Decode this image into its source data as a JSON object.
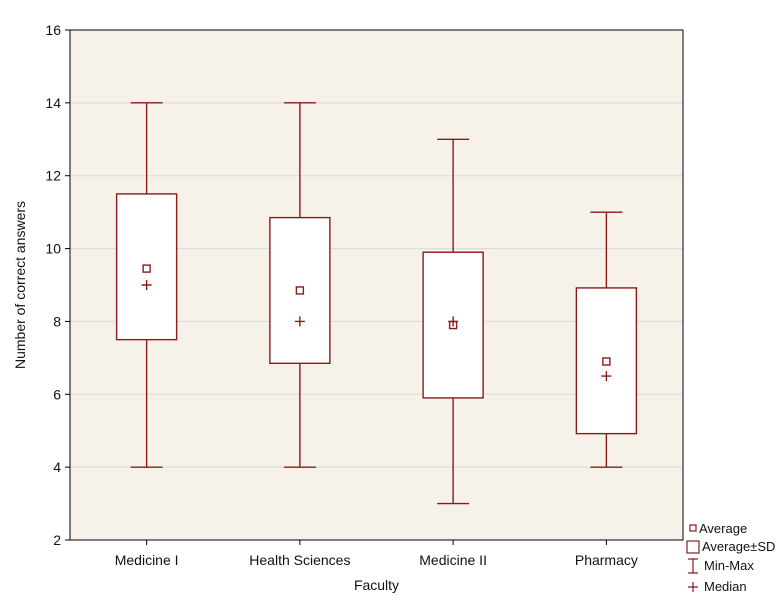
{
  "chart_data": {
    "type": "box",
    "xlabel": "Faculty",
    "ylabel": "Number of correct answers",
    "ylim": [
      2,
      16
    ],
    "yticks": [
      2,
      4,
      6,
      8,
      10,
      12,
      14,
      16
    ],
    "grid": true,
    "legend_position": "bottom-right",
    "legend": {
      "average": "Average",
      "box": "Average±SD",
      "minmax": "Min-Max",
      "median": "Median"
    },
    "categories": [
      "Medicine I",
      "Health Sciences",
      "Medicine II",
      "Pharmacy"
    ],
    "boxes": [
      {
        "category": "Medicine I",
        "min": 4,
        "box_low": 7.5,
        "box_high": 11.5,
        "median": 9.0,
        "average": 9.45,
        "max": 14
      },
      {
        "category": "Health Sciences",
        "min": 4,
        "box_low": 6.85,
        "box_high": 10.85,
        "median": 8.0,
        "average": 8.85,
        "max": 14
      },
      {
        "category": "Medicine II",
        "min": 3,
        "box_low": 5.9,
        "box_high": 9.9,
        "median": 8.0,
        "average": 7.9,
        "max": 13
      },
      {
        "category": "Pharmacy",
        "min": 4,
        "box_low": 4.92,
        "box_high": 8.92,
        "median": 6.5,
        "average": 6.9,
        "max": 11
      }
    ],
    "colors": {
      "series": "#8b1a1a",
      "plot_background": "#f6f2ea",
      "gridline": "#d9d9d9"
    }
  }
}
